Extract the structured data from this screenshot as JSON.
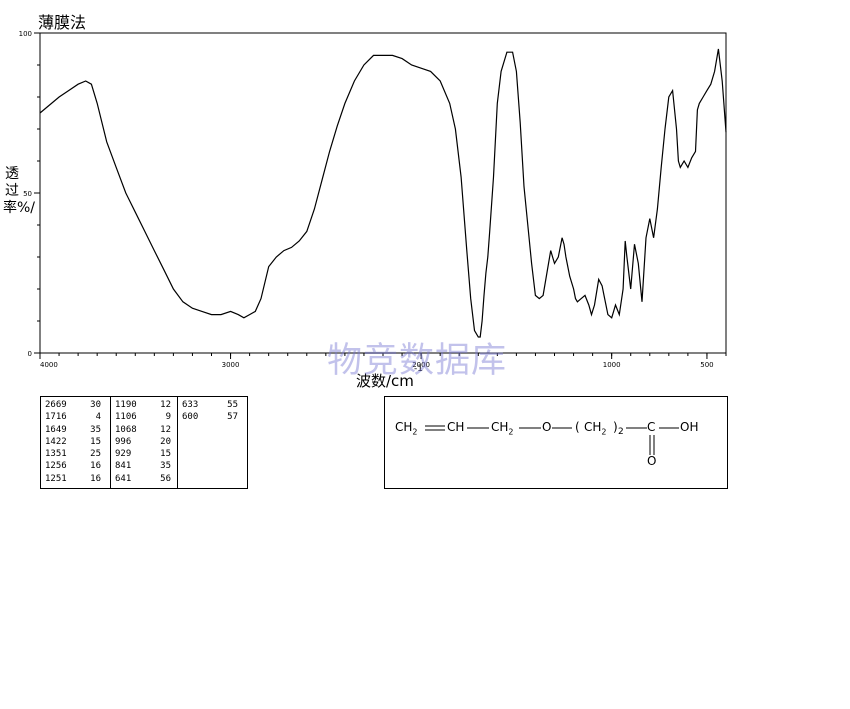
{
  "title": "薄膜法",
  "watermark": "物竞数据库",
  "chart_data": {
    "type": "line",
    "xlabel": "波数/cm",
    "xlabel_superscript": "-1",
    "ylabel": "透过率%/",
    "xlim": [
      4000,
      400
    ],
    "ylim": [
      0,
      100
    ],
    "xticks": [
      4000,
      3000,
      2000,
      1000,
      500
    ],
    "xtick_labels": [
      "4000",
      "3000",
      "2000",
      "1000",
      "500"
    ],
    "yticks": [
      0,
      50,
      100
    ],
    "ytick_labels": [
      "0",
      "50",
      "100"
    ],
    "series": [
      {
        "x": [
          4000,
          3900,
          3850,
          3800,
          3760,
          3730,
          3700,
          3650,
          3600,
          3550,
          3500,
          3450,
          3400,
          3350,
          3300,
          3250,
          3200,
          3150,
          3100,
          3050,
          3000,
          2960,
          2930,
          2900,
          2870,
          2840,
          2800,
          2760,
          2720,
          2680,
          2640,
          2600,
          2560,
          2520,
          2480,
          2440,
          2400,
          2350,
          2300,
          2250,
          2200,
          2150,
          2100,
          2050,
          2000,
          1950,
          1900,
          1850,
          1820,
          1790,
          1760,
          1740,
          1720,
          1700,
          1690,
          1680,
          1670,
          1660,
          1650,
          1640,
          1620,
          1600,
          1580,
          1550,
          1520,
          1500,
          1480,
          1460,
          1440,
          1420,
          1400,
          1380,
          1360,
          1340,
          1320,
          1300,
          1280,
          1260,
          1250,
          1240,
          1230,
          1220,
          1200,
          1190,
          1180,
          1160,
          1140,
          1120,
          1106,
          1090,
          1068,
          1050,
          1040,
          1020,
          1000,
          990,
          980,
          960,
          940,
          929,
          920,
          900,
          880,
          860,
          841,
          820,
          800,
          780,
          760,
          740,
          720,
          700,
          680,
          660,
          650,
          640,
          630,
          620,
          600,
          580,
          560,
          550,
          540,
          520,
          500,
          480,
          460,
          440,
          420,
          400
        ],
        "y": [
          75,
          80,
          82,
          84,
          85,
          84,
          78,
          66,
          58,
          50,
          44,
          38,
          32,
          26,
          20,
          16,
          14,
          13,
          12,
          12,
          13,
          12,
          11,
          12,
          13,
          17,
          27,
          30,
          32,
          33,
          35,
          38,
          45,
          54,
          63,
          71,
          78,
          85,
          90,
          93,
          93,
          93,
          92,
          90,
          89,
          88,
          85,
          78,
          70,
          55,
          32,
          17,
          7,
          5,
          5,
          10,
          18,
          25,
          30,
          38,
          55,
          78,
          88,
          94,
          94,
          88,
          72,
          52,
          40,
          28,
          18,
          17,
          18,
          25,
          32,
          28,
          30,
          36,
          34,
          30,
          27,
          24,
          20,
          17,
          16,
          17,
          18,
          15,
          12,
          15,
          23,
          21,
          18,
          12,
          11,
          13,
          15,
          12,
          20,
          35,
          30,
          20,
          34,
          28,
          16,
          36,
          42,
          36,
          45,
          58,
          70,
          80,
          82,
          70,
          60,
          58,
          59,
          60,
          58,
          61,
          63,
          76,
          78,
          80,
          82,
          84,
          88,
          95,
          85,
          69
        ]
      }
    ],
    "peak_table": [
      [
        [
          "2669",
          "30"
        ],
        [
          "1716",
          "4"
        ],
        [
          "1649",
          "35"
        ],
        [
          "1422",
          "15"
        ],
        [
          "1351",
          "25"
        ],
        [
          "1256",
          "16"
        ],
        [
          "1251",
          "16"
        ]
      ],
      [
        [
          "1190",
          "12"
        ],
        [
          "1106",
          "9"
        ],
        [
          "1068",
          "12"
        ],
        [
          "996",
          "20"
        ],
        [
          "929",
          "15"
        ],
        [
          "841",
          "35"
        ],
        [
          "641",
          "56"
        ]
      ],
      [
        [
          "633",
          "55"
        ],
        [
          "600",
          "57"
        ]
      ]
    ]
  },
  "structure": {
    "ch2_a": "CH",
    "ch2_a_sub": "2",
    "ch": "CH",
    "ch2_b": "CH",
    "ch2_b_sub": "2",
    "o": "O",
    "paren_open": "(",
    "ch2_c": "CH",
    "ch2_c_sub": "2",
    "paren_close": ")",
    "n": "2",
    "c": "C",
    "oh": "OH",
    "dbl_o": "O"
  }
}
